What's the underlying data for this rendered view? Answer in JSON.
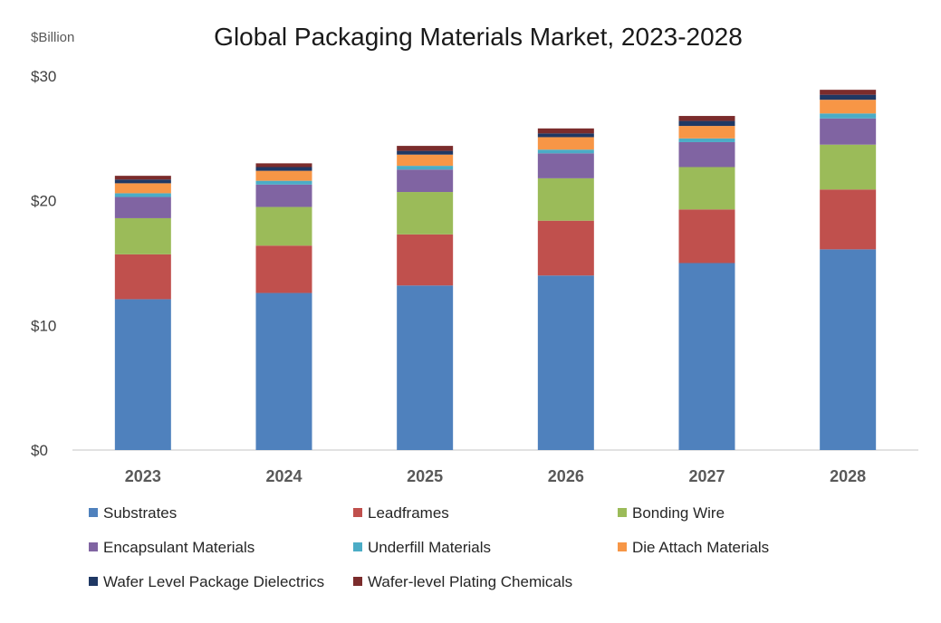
{
  "chart_data": {
    "type": "bar",
    "stacked": true,
    "title": "Global Packaging Materials Market, 2023-2028",
    "unit_label": "$Billion",
    "xlabel": "",
    "ylabel": "",
    "categories": [
      "2023",
      "2024",
      "2025",
      "2026",
      "2027",
      "2028"
    ],
    "ylim": [
      0,
      30
    ],
    "yticks": [
      {
        "value": 0,
        "label": "$0"
      },
      {
        "value": 10,
        "label": "$10"
      },
      {
        "value": 20,
        "label": "$20"
      },
      {
        "value": 30,
        "label": "$30"
      }
    ],
    "grid": false,
    "legend_position": "bottom",
    "series": [
      {
        "name": "Substrates",
        "color": "#4f81bd",
        "values": [
          12.1,
          12.6,
          13.2,
          14.0,
          15.0,
          16.1
        ]
      },
      {
        "name": "Leadframes",
        "color": "#c0504d",
        "values": [
          3.6,
          3.8,
          4.1,
          4.4,
          4.3,
          4.8
        ]
      },
      {
        "name": "Bonding Wire",
        "color": "#9bbb59",
        "values": [
          2.9,
          3.1,
          3.4,
          3.4,
          3.4,
          3.6
        ]
      },
      {
        "name": "Encapsulant Materials",
        "color": "#8064a2",
        "values": [
          1.7,
          1.8,
          1.8,
          2.0,
          2.0,
          2.1
        ]
      },
      {
        "name": "Underfill Materials",
        "color": "#4bacc6",
        "values": [
          0.3,
          0.3,
          0.3,
          0.3,
          0.3,
          0.4
        ]
      },
      {
        "name": "Die Attach Materials",
        "color": "#f79646",
        "values": [
          0.8,
          0.8,
          0.9,
          1.0,
          1.0,
          1.1
        ]
      },
      {
        "name": "Wafer Level Package Dielectrics",
        "color": "#1f3864",
        "values": [
          0.3,
          0.3,
          0.3,
          0.3,
          0.4,
          0.4
        ]
      },
      {
        "name": "Wafer-level Plating Chemicals",
        "color": "#7b2c2c",
        "values": [
          0.3,
          0.3,
          0.4,
          0.4,
          0.4,
          0.4
        ]
      }
    ]
  }
}
